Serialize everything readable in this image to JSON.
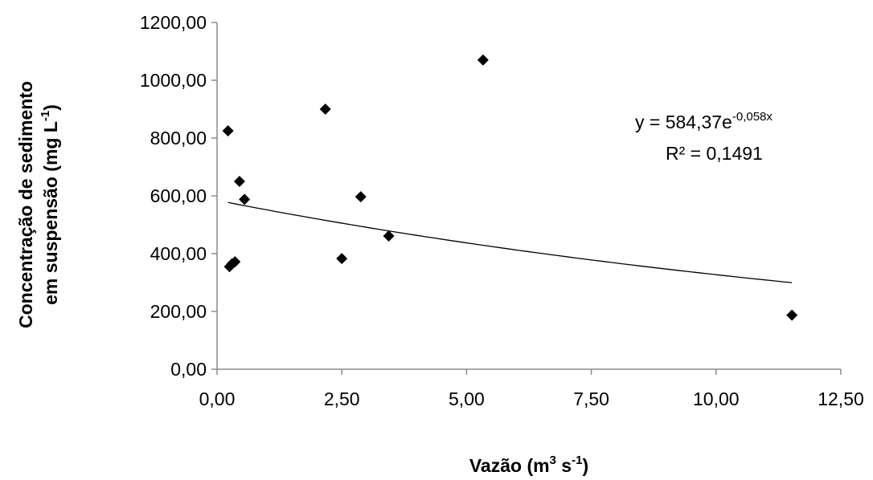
{
  "chart_data": {
    "type": "scatter",
    "title": "",
    "xlabel": {
      "base": "Vazão (m",
      "sup1": "3",
      "mid": " s",
      "sup2": "-1",
      "end": ")"
    },
    "ylabel": {
      "line1": "Concentração de sedimento",
      "line2_base": "em suspensão  (mg  L",
      "line2_sup": "-1",
      "line2_end": ")"
    },
    "xlim": [
      0,
      12.5
    ],
    "ylim": [
      0,
      1200
    ],
    "x_ticks": [
      0,
      2.5,
      5,
      7.5,
      10,
      12.5
    ],
    "x_tick_labels": [
      "0,00",
      "2,50",
      "5,00",
      "7,50",
      "10,00",
      "12,50"
    ],
    "y_ticks": [
      0,
      200,
      400,
      600,
      800,
      1000,
      1200
    ],
    "y_tick_labels": [
      "0,00",
      "200,00",
      "400,00",
      "600,00",
      "800,00",
      "1000,00",
      "1200,00"
    ],
    "grid": false,
    "legend": "none",
    "marker": "diamond",
    "series": [
      {
        "points": [
          {
            "x": 0.22,
            "y": 825
          },
          {
            "x": 0.25,
            "y": 355
          },
          {
            "x": 0.3,
            "y": 365
          },
          {
            "x": 0.36,
            "y": 372
          },
          {
            "x": 0.45,
            "y": 650
          },
          {
            "x": 0.55,
            "y": 588
          },
          {
            "x": 2.17,
            "y": 900
          },
          {
            "x": 2.5,
            "y": 383
          },
          {
            "x": 2.88,
            "y": 597
          },
          {
            "x": 3.44,
            "y": 461
          },
          {
            "x": 5.33,
            "y": 1070
          },
          {
            "x": 11.52,
            "y": 187
          }
        ]
      }
    ],
    "trendline": {
      "type": "exponential",
      "a": 584.37,
      "b": -0.058,
      "x_range": [
        0.22,
        11.52
      ],
      "equation": {
        "prefix": "y = 584,37e",
        "exponent": "-0,058x"
      },
      "r_squared": "R² = 0,1491"
    },
    "colors": {
      "marker": "#000000",
      "trendline": "#000000",
      "axis": "#8c8c8c"
    }
  }
}
